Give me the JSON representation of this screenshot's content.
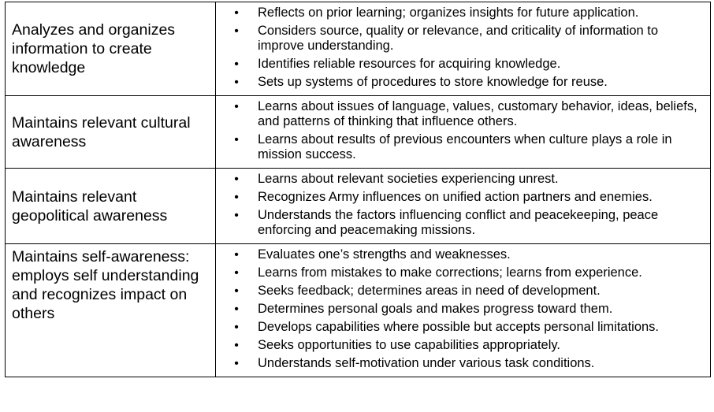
{
  "rows": [
    {
      "label": "Analyzes and organizes information to create knowledge",
      "bullets": [
        "Reflects on prior learning; organizes insights for future application.",
        "Considers source, quality or relevance, and criticality of information to improve understanding.",
        "Identifies reliable resources for acquiring knowledge.",
        "Sets up systems of procedures to store knowledge for reuse."
      ]
    },
    {
      "label": "Maintains relevant cultural awareness",
      "bullets": [
        "Learns about issues of language, values, customary behavior, ideas, beliefs, and patterns of thinking that influence others.",
        "Learns about results of previous encounters when culture plays a role in mission success."
      ]
    },
    {
      "label": "Maintains relevant geopolitical awareness",
      "bullets": [
        "Learns about relevant societies experiencing unrest.",
        "Recognizes Army influences on unified action partners and enemies.",
        "Understands the factors influencing conflict and peacekeeping, peace enforcing and peacemaking missions."
      ]
    },
    {
      "label": "Maintains self-awareness: employs self understanding and recognizes impact on others",
      "bullets": [
        "Evaluates one’s strengths and weaknesses.",
        "Learns from mistakes to make corrections; learns from experience.",
        "Seeks feedback; determines areas in need of development.",
        "Determines personal goals and makes progress toward them.",
        "Develops capabilities where possible but accepts personal limitations.",
        "Seeks opportunities to use capabilities appropriately.",
        "Understands self-motivation under various task conditions."
      ]
    }
  ],
  "bullet_glyph": "•"
}
